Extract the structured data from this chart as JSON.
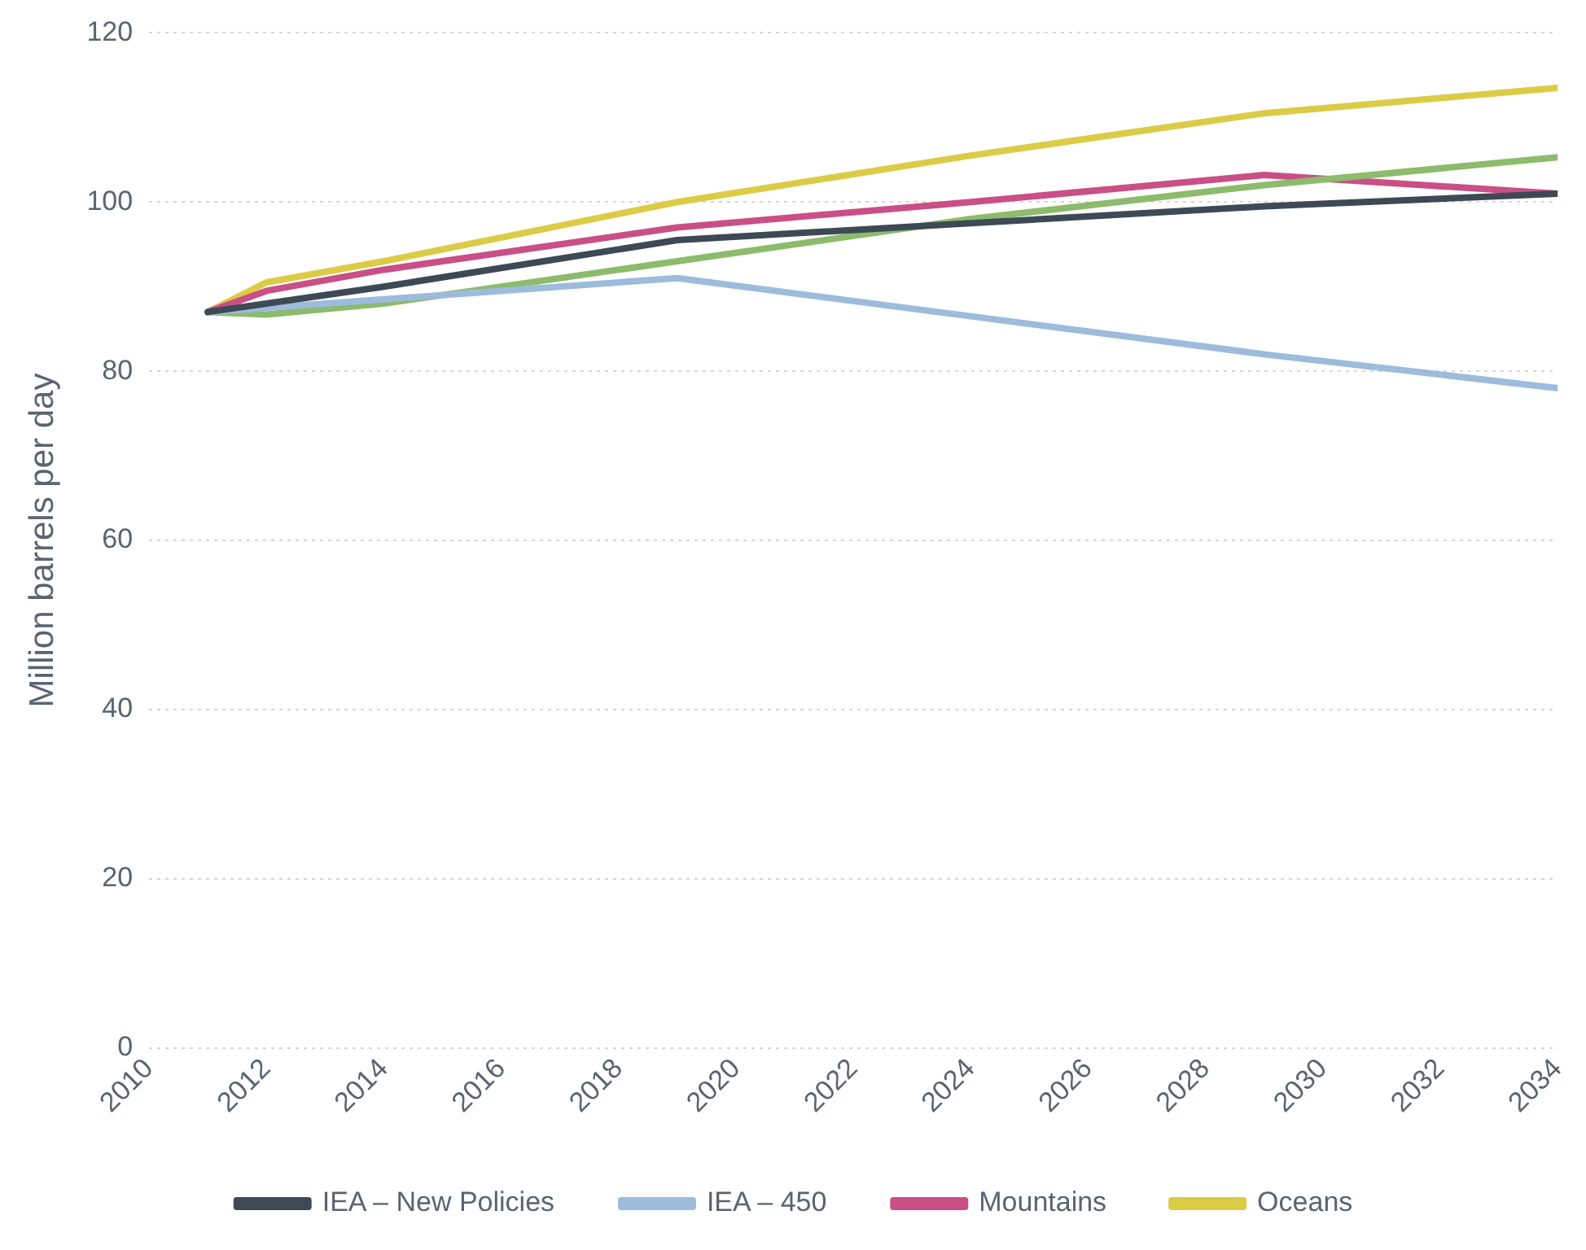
{
  "chart_data": {
    "type": "line",
    "ylabel": "Million barrels per day",
    "xlim": [
      2010,
      2034
    ],
    "xticks": [
      2010,
      2012,
      2014,
      2016,
      2018,
      2020,
      2022,
      2024,
      2026,
      2028,
      2030,
      2032,
      2034
    ],
    "ylim": [
      0,
      120
    ],
    "yticks": [
      0,
      20,
      40,
      60,
      80,
      100,
      120
    ],
    "grid": "y",
    "legend": "bottom",
    "marker": "none",
    "line_style": "solid",
    "x": [
      2011,
      2012,
      2014,
      2019,
      2024,
      2029,
      2034
    ],
    "series": [
      {
        "name": "IEA – New Policies",
        "color": "#3d4a55",
        "values": [
          87,
          88,
          90,
          95.5,
          97.5,
          99.5,
          101
        ]
      },
      {
        "name": "IEA – 450",
        "color": "#9dbbdc",
        "values": [
          87,
          87.5,
          88.5,
          91,
          86.5,
          82,
          78
        ]
      },
      {
        "color": "#8dbb6c",
        "values": [
          87,
          86.7,
          88,
          93,
          98,
          102,
          105.3
        ]
      },
      {
        "name": "Mountains",
        "color": "#c94f86",
        "values": [
          87,
          89.5,
          92,
          97,
          100,
          103.2,
          101
        ]
      },
      {
        "name": "Oceans",
        "color": "#dccb45",
        "values": [
          87,
          90.5,
          93,
          100,
          105.5,
          110.5,
          113.5
        ]
      }
    ]
  }
}
